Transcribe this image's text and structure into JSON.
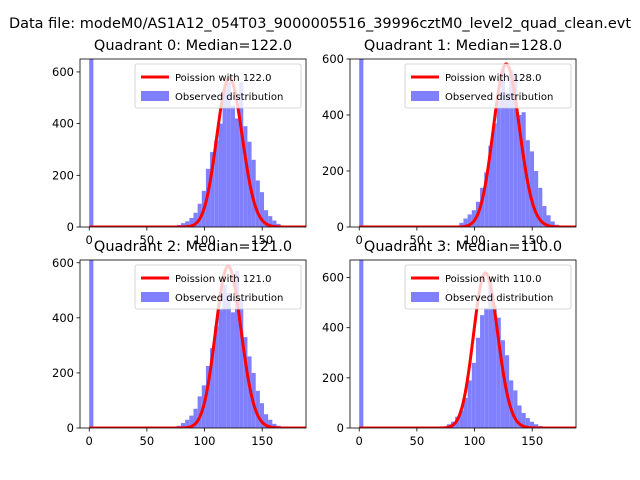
{
  "suptitle": "Data file: modeM0/AS1A12_054T03_9000005516_39996cztM0_level2_quad_clean.evt",
  "chart_data": [
    {
      "type": "histogram+line",
      "title": "Quadrant 0: Median=122.0",
      "median": 122.0,
      "xlim": [
        -8,
        188
      ],
      "ylim": [
        0,
        650
      ],
      "xticks": [
        0,
        50,
        100,
        150
      ],
      "yticks": [
        0,
        200,
        400,
        600
      ],
      "bin_width": 3.6,
      "hist_x": [
        0,
        76,
        79.6,
        83.2,
        86.8,
        90.4,
        94,
        97.6,
        101.2,
        104.8,
        108.4,
        112,
        115.6,
        119.2,
        122.8,
        126.4,
        130,
        133.6,
        137.2,
        140.8,
        144.4,
        148,
        151.6,
        155.2,
        158.8,
        162.4,
        166
      ],
      "hist_y": [
        650,
        8,
        15,
        22,
        35,
        55,
        90,
        140,
        225,
        290,
        335,
        400,
        530,
        560,
        470,
        420,
        560,
        390,
        330,
        260,
        180,
        135,
        65,
        42,
        25,
        12,
        5
      ],
      "legend": [
        "Poission with 122.0",
        "Observed distribution"
      ]
    },
    {
      "type": "histogram+line",
      "title": "Quadrant 1: Median=128.0",
      "median": 128.0,
      "xlim": [
        -8,
        188
      ],
      "ylim": [
        0,
        600
      ],
      "xticks": [
        0,
        50,
        100,
        150
      ],
      "yticks": [
        0,
        200,
        400,
        600
      ],
      "bin_width": 3.6,
      "hist_x": [
        0,
        86.8,
        90.4,
        94,
        97.6,
        101.2,
        104.8,
        108.4,
        112,
        115.6,
        119.2,
        122.8,
        126.4,
        130,
        133.6,
        137.2,
        140.8,
        144.4,
        148,
        151.6,
        155.2,
        158.8,
        162.4,
        166,
        169.6
      ],
      "hist_y": [
        600,
        15,
        30,
        45,
        60,
        90,
        140,
        195,
        290,
        370,
        450,
        565,
        480,
        560,
        540,
        400,
        410,
        310,
        270,
        200,
        140,
        75,
        42,
        20,
        8
      ],
      "legend": [
        "Poission with 128.0",
        "Observed distribution"
      ]
    },
    {
      "type": "histogram+line",
      "title": "Quadrant 2: Median=121.0",
      "median": 121.0,
      "xlim": [
        -8,
        188
      ],
      "ylim": [
        0,
        610
      ],
      "xticks": [
        0,
        50,
        100,
        150
      ],
      "yticks": [
        0,
        200,
        400,
        600
      ],
      "bin_width": 3.6,
      "hist_x": [
        0,
        76,
        79.6,
        83.2,
        86.8,
        90.4,
        94,
        97.6,
        101.2,
        104.8,
        108.4,
        112,
        115.6,
        119.2,
        122.8,
        126.4,
        130,
        133.6,
        137.2,
        140.8,
        144.4,
        148,
        151.6,
        155.2,
        158.8,
        162.4,
        166
      ],
      "hist_y": [
        610,
        8,
        18,
        30,
        45,
        70,
        115,
        155,
        225,
        290,
        370,
        430,
        520,
        490,
        420,
        570,
        470,
        330,
        260,
        200,
        135,
        90,
        50,
        30,
        15,
        8,
        3
      ],
      "legend": [
        "Poission with 121.0",
        "Observed distribution"
      ]
    },
    {
      "type": "histogram+line",
      "title": "Quadrant 3: Median=110.0",
      "median": 110.0,
      "xlim": [
        -8,
        188
      ],
      "ylim": [
        0,
        670
      ],
      "xticks": [
        0,
        50,
        100,
        150
      ],
      "yticks": [
        0,
        200,
        400,
        600
      ],
      "bin_width": 3.6,
      "hist_x": [
        0,
        76,
        79.6,
        83.2,
        86.8,
        90.4,
        94,
        97.6,
        101.2,
        104.8,
        108.4,
        112,
        115.6,
        119.2,
        122.8,
        126.4,
        130,
        133.6,
        137.2,
        140.8,
        144.4,
        148,
        151.6,
        155.2,
        158.8
      ],
      "hist_y": [
        670,
        15,
        25,
        45,
        70,
        120,
        190,
        260,
        360,
        450,
        480,
        600,
        490,
        440,
        350,
        290,
        190,
        150,
        90,
        60,
        40,
        25,
        15,
        8,
        3
      ],
      "legend": [
        "Poission with 110.0",
        "Observed distribution"
      ]
    }
  ],
  "colors": {
    "poisson": "#ff0000",
    "observed": "#8080ff",
    "axis": "#000000"
  }
}
